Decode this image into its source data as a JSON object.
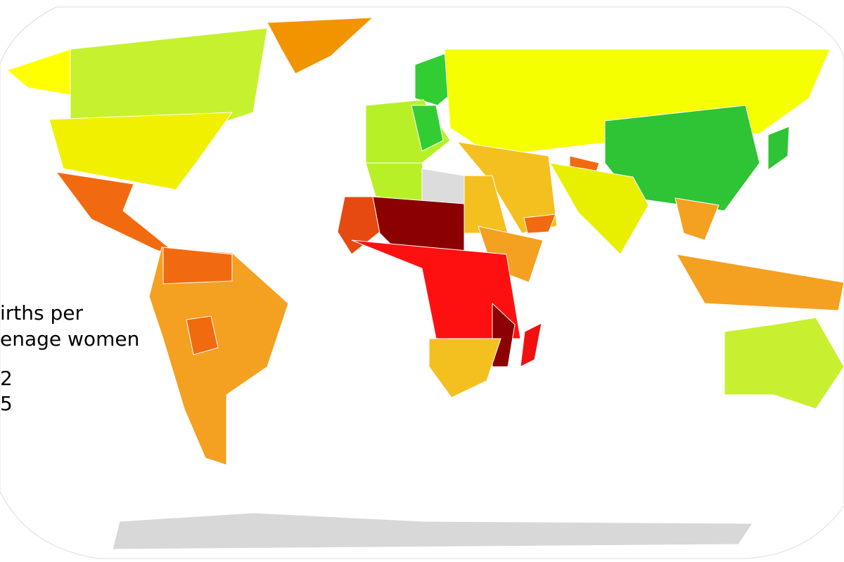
{
  "legend": {
    "title_lines": [
      "irths per",
      "enage women"
    ],
    "entries": [
      "2",
      "5"
    ]
  }
}
